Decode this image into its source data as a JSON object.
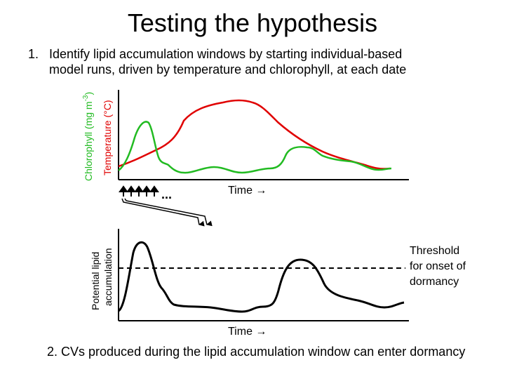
{
  "title": "Testing the hypothesis",
  "step1": {
    "number": "1.",
    "line1": "Identify lipid accumulation windows by starting individual-based",
    "line2": "model runs, driven by temperature and chlorophyll, at each date"
  },
  "step2": "2. CVs produced during the lipid accumulation window can enter dormancy",
  "top_panel": {
    "ylabel_chlorophyll_pre": "Chlorophyll (mg m",
    "ylabel_chlorophyll_sup": "-3",
    "ylabel_chlorophyll_post": ")",
    "ylabel_temperature": "Temperature (°C)",
    "xlabel": "Time →",
    "ellipsis": "...",
    "colors": {
      "chlorophyll": "#22bb22",
      "temperature": "#e00000"
    }
  },
  "bottom_panel": {
    "ylabel_line1": "Potential lipid",
    "ylabel_line2": "accumulation",
    "xlabel": "Time →",
    "threshold_line1": "Threshold",
    "threshold_line2": "for onset of",
    "threshold_line3": "dormancy"
  }
}
